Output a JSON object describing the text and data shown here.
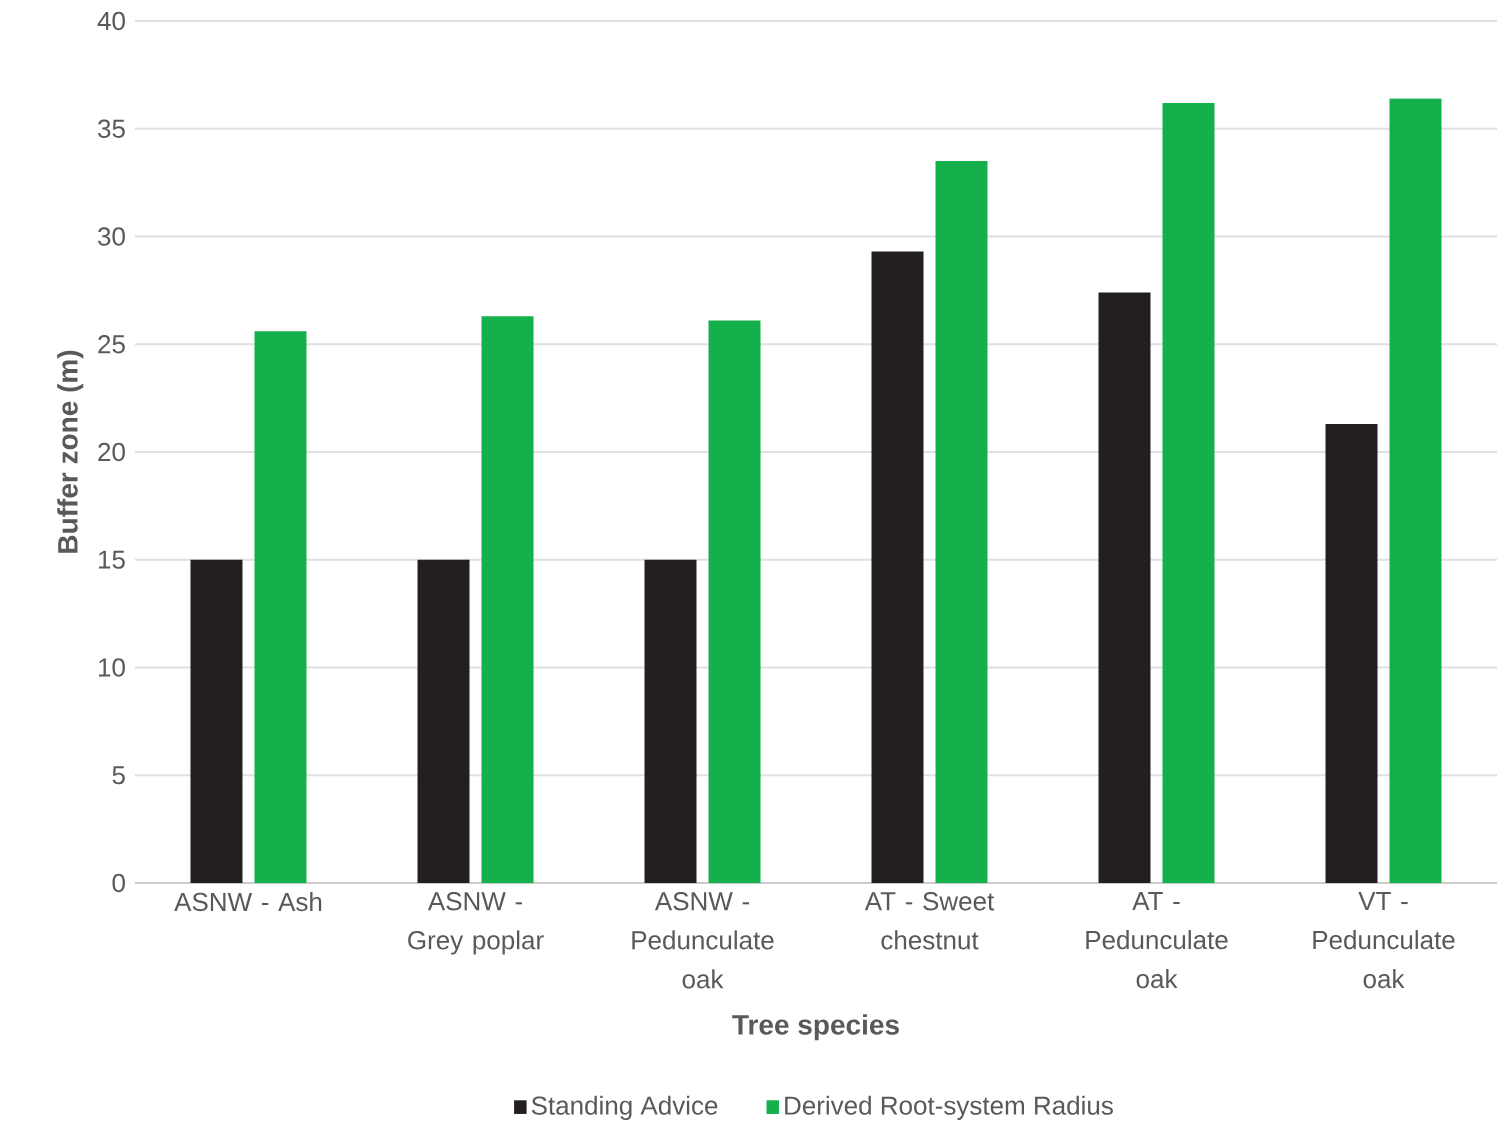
{
  "chart_data": {
    "type": "bar",
    "xlabel": "Tree species",
    "ylabel": "Buffer zone (m)",
    "categories": [
      "ASNW - Ash",
      "ASNW - Grey poplar",
      "ASNW - Pedunculate oak",
      "AT - Sweet chestnut",
      "AT - Pedunculate oak",
      "VT - Pedunculate oak"
    ],
    "series": [
      {
        "name": "Standing Advice",
        "color": "#231f20",
        "values": [
          15,
          15,
          15,
          29.3,
          27.4,
          21.3
        ]
      },
      {
        "name": "Derived Root-system Radius",
        "color": "#14b04c",
        "values": [
          25.6,
          26.3,
          26.1,
          33.5,
          36.2,
          36.4
        ]
      }
    ],
    "ylim": [
      0,
      40
    ],
    "yticks": [
      0,
      5,
      10,
      15,
      20,
      25,
      30,
      35,
      40
    ],
    "grid": "y",
    "legend": "bottom"
  }
}
